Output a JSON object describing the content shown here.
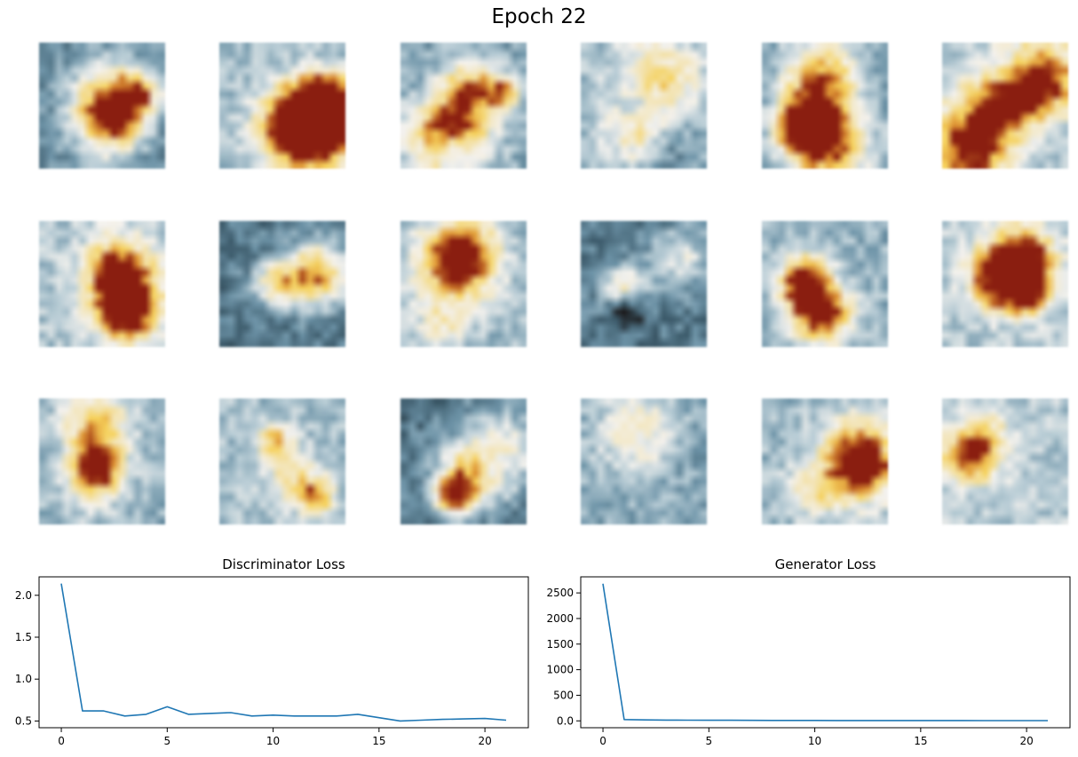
{
  "figure": {
    "suptitle": "Epoch 22"
  },
  "samples": {
    "rows": 3,
    "cols": 6,
    "palette": {
      "dark": "#1e1e20",
      "slate": "#3c5a6a",
      "teal": "#6e94a8",
      "pale": "#b9cdd6",
      "white": "#f4f2ee",
      "cream": "#f3e3b0",
      "yellow": "#f6d25c",
      "orange": "#d9892e",
      "red": "#8a1e10",
      "black": "#120808"
    }
  },
  "chart_data": [
    {
      "type": "line",
      "title": "Discriminator Loss",
      "xlabel": "",
      "ylabel": "",
      "x": [
        0,
        1,
        2,
        3,
        4,
        5,
        6,
        7,
        8,
        9,
        10,
        11,
        12,
        13,
        14,
        15,
        16,
        17,
        18,
        19,
        20,
        21
      ],
      "series": [
        {
          "values": [
            2.14,
            0.62,
            0.62,
            0.56,
            0.58,
            0.67,
            0.58,
            0.59,
            0.6,
            0.56,
            0.57,
            0.56,
            0.56,
            0.56,
            0.58,
            0.54,
            0.5,
            0.51,
            0.52,
            0.525,
            0.53,
            0.51
          ],
          "color": "#1f77b4"
        }
      ],
      "xticks": [
        0,
        5,
        10,
        15,
        20
      ],
      "yticks": [
        0.5,
        1.0,
        1.5,
        2.0
      ],
      "xlim": [
        -1.05,
        22.05
      ],
      "ylim": [
        0.42,
        2.22
      ],
      "grid": false
    },
    {
      "type": "line",
      "title": "Generator Loss",
      "xlabel": "",
      "ylabel": "",
      "x": [
        0,
        1,
        2,
        3,
        4,
        5,
        6,
        7,
        8,
        9,
        10,
        11,
        12,
        13,
        14,
        15,
        16,
        17,
        18,
        19,
        20,
        21
      ],
      "series": [
        {
          "values": [
            2680,
            25,
            18,
            15,
            13,
            12,
            11,
            10,
            9,
            8,
            8,
            7,
            7,
            7,
            6,
            6,
            6,
            6,
            5,
            5,
            5,
            5
          ],
          "color": "#1f77b4"
        }
      ],
      "xticks": [
        0,
        5,
        10,
        15,
        20
      ],
      "yticks": [
        0,
        500,
        1000,
        1500,
        2000,
        2500
      ],
      "xlim": [
        -1.05,
        22.05
      ],
      "ylim": [
        -134,
        2814
      ],
      "grid": false
    }
  ]
}
